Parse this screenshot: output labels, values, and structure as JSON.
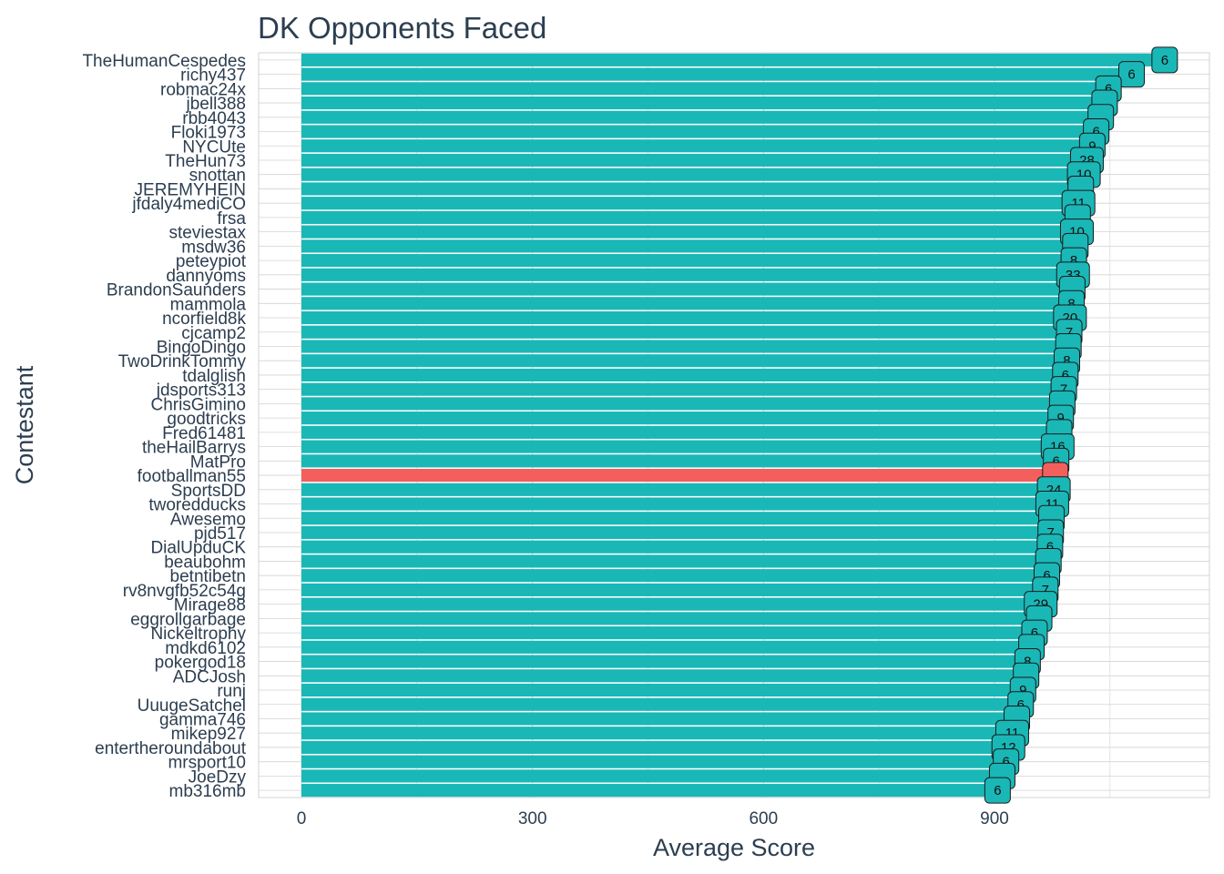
{
  "chart_data": {
    "type": "bar",
    "orientation": "horizontal",
    "title": "DK Opponents Faced",
    "xlabel": "Average Score",
    "ylabel": "Contestant",
    "xlim": [
      -50,
      1130
    ],
    "xticks": [
      0,
      300,
      600,
      900
    ],
    "grid": true,
    "colors": {
      "default": "#1ab7b7",
      "highlight": "#f25f5c",
      "text": "#2c3e50",
      "grid": "#d3d3d3"
    },
    "categories": [
      "TheHumanCespedes",
      "richy437",
      "robmac24x",
      "jbell388",
      "rbb4043",
      "Floki1973",
      "NYCUte",
      "TheHun73",
      "snottan",
      "JEREMYHEIN",
      "jfdaly4mediCO",
      "frsa",
      "steviestax",
      "msdw36",
      "peteypiot",
      "dannyoms",
      "BrandonSaunders",
      "mammola",
      "ncorfield8k",
      "cjcamp2",
      "BingoDingo",
      "TwoDrinkTommy",
      "tdalglish",
      "jdsports313",
      "ChrisGimino",
      "goodtricks",
      "Fred61481",
      "theHailBarrys",
      "MatPro",
      "footballman55",
      "SportsDD",
      "tworedducks",
      "Awesemo",
      "pjd517",
      "DialUpduCK",
      "beaubohm",
      "betntibetn",
      "rv8nvgfb52c54g",
      "Mirage88",
      "eggrollgarbage",
      "Nickeltrophy",
      "mdkd6102",
      "pokergod18",
      "ADCJosh",
      "runj",
      "UuugeSatchel",
      "gamma746",
      "mikep927",
      "entertheroundabout",
      "mrsport10",
      "JoeDzy",
      "mb316mb"
    ],
    "values": [
      1121,
      1078,
      1048,
      1043,
      1038,
      1032,
      1027,
      1020,
      1016,
      1012,
      1009,
      1008,
      1007,
      1005,
      1003,
      1002,
      1001,
      1000,
      998,
      997,
      996,
      994,
      992,
      990,
      988,
      986,
      984,
      982,
      980,
      979,
      977,
      975,
      974,
      973,
      972,
      970,
      968,
      966,
      960,
      958,
      952,
      948,
      943,
      941,
      937,
      934,
      929,
      923,
      918,
      915,
      910,
      904
    ],
    "labels": [
      6,
      6,
      6,
      null,
      null,
      6,
      9,
      28,
      10,
      null,
      11,
      null,
      10,
      null,
      8,
      33,
      null,
      8,
      20,
      7,
      null,
      8,
      6,
      7,
      null,
      9,
      null,
      16,
      6,
      null,
      24,
      11,
      null,
      7,
      6,
      null,
      6,
      7,
      29,
      null,
      6,
      null,
      8,
      null,
      9,
      6,
      null,
      11,
      12,
      6,
      null,
      6
    ],
    "highlight": "footballman55"
  }
}
